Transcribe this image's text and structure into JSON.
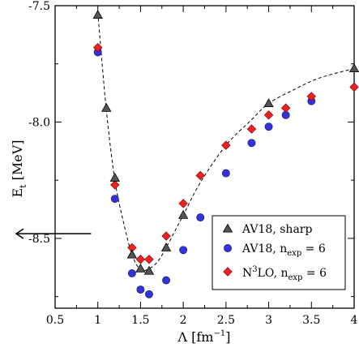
{
  "chart_data": {
    "type": "scatter",
    "xlabel": "Λ [fm",
    "xlabel_sup": "−1",
    "xlabel_close": "]",
    "ylabel": "E",
    "ylabel_sub": "t",
    "ylabel_unit": " [MeV]",
    "xlim": [
      0.5,
      4.0
    ],
    "ylim": [
      -8.8,
      -7.5
    ],
    "x_ticks": [
      0.5,
      1.0,
      1.5,
      2.0,
      2.5,
      3.0,
      3.5,
      4.0
    ],
    "x_tick_labels": [
      "0.5",
      "1",
      "1.5",
      "2",
      "2.5",
      "3",
      "3.5",
      "4"
    ],
    "y_ticks": [
      -8.5,
      -8.0,
      -7.5
    ],
    "y_tick_labels": [
      "-8.5",
      "-8.0",
      "-7.5"
    ],
    "grid": false,
    "legend_position": "bottom-right",
    "series": [
      {
        "legend": "AV18, sharp",
        "marker": "triangle",
        "color": "#555555",
        "x": [
          1.0,
          1.1,
          1.2,
          1.4,
          1.5,
          1.6,
          1.8,
          2.0,
          3.0,
          4.0
        ],
        "y": [
          -7.54,
          -7.94,
          -8.24,
          -8.57,
          -8.63,
          -8.64,
          -8.54,
          -8.4,
          -7.92,
          -7.77
        ]
      },
      {
        "legend_main": "AV18, n",
        "legend_sub": "exp",
        "legend_tail": " = 6",
        "marker": "circle",
        "color": "#3333dd",
        "x": [
          1.0,
          1.2,
          1.4,
          1.5,
          1.6,
          1.8,
          2.0,
          2.2,
          2.5,
          2.8,
          3.0,
          3.2,
          3.5
        ],
        "y": [
          -7.7,
          -8.33,
          -8.65,
          -8.72,
          -8.74,
          -8.68,
          -8.55,
          -8.41,
          -8.22,
          -8.09,
          -8.02,
          -7.97,
          -7.91
        ]
      },
      {
        "legend_pre": "N",
        "legend_sup": "3",
        "legend_main": "LO, n",
        "legend_sub": "exp",
        "legend_tail": " = 6",
        "marker": "diamond",
        "color": "#ee2222",
        "x": [
          1.0,
          1.2,
          1.4,
          1.5,
          1.6,
          1.8,
          2.0,
          2.2,
          2.5,
          2.8,
          3.0,
          3.2,
          3.5,
          4.0
        ],
        "y": [
          -7.68,
          -8.27,
          -8.54,
          -8.59,
          -8.59,
          -8.49,
          -8.35,
          -8.23,
          -8.1,
          -8.03,
          -7.97,
          -7.94,
          -7.89,
          -7.85
        ]
      }
    ],
    "fit_curve": {
      "x": [
        1.0,
        1.1,
        1.2,
        1.3,
        1.4,
        1.5,
        1.6,
        1.7,
        1.8,
        1.9,
        2.0,
        2.2,
        2.5,
        2.8,
        3.0,
        3.3,
        3.6,
        4.0
      ],
      "y": [
        -7.53,
        -7.95,
        -8.25,
        -8.43,
        -8.57,
        -8.635,
        -8.63,
        -8.6,
        -8.54,
        -8.47,
        -8.4,
        -8.26,
        -8.1,
        -7.99,
        -7.92,
        -7.86,
        -7.81,
        -7.77
      ]
    },
    "arrow": {
      "x_from": 0.95,
      "x_to": 0.5,
      "y": -8.48
    }
  }
}
